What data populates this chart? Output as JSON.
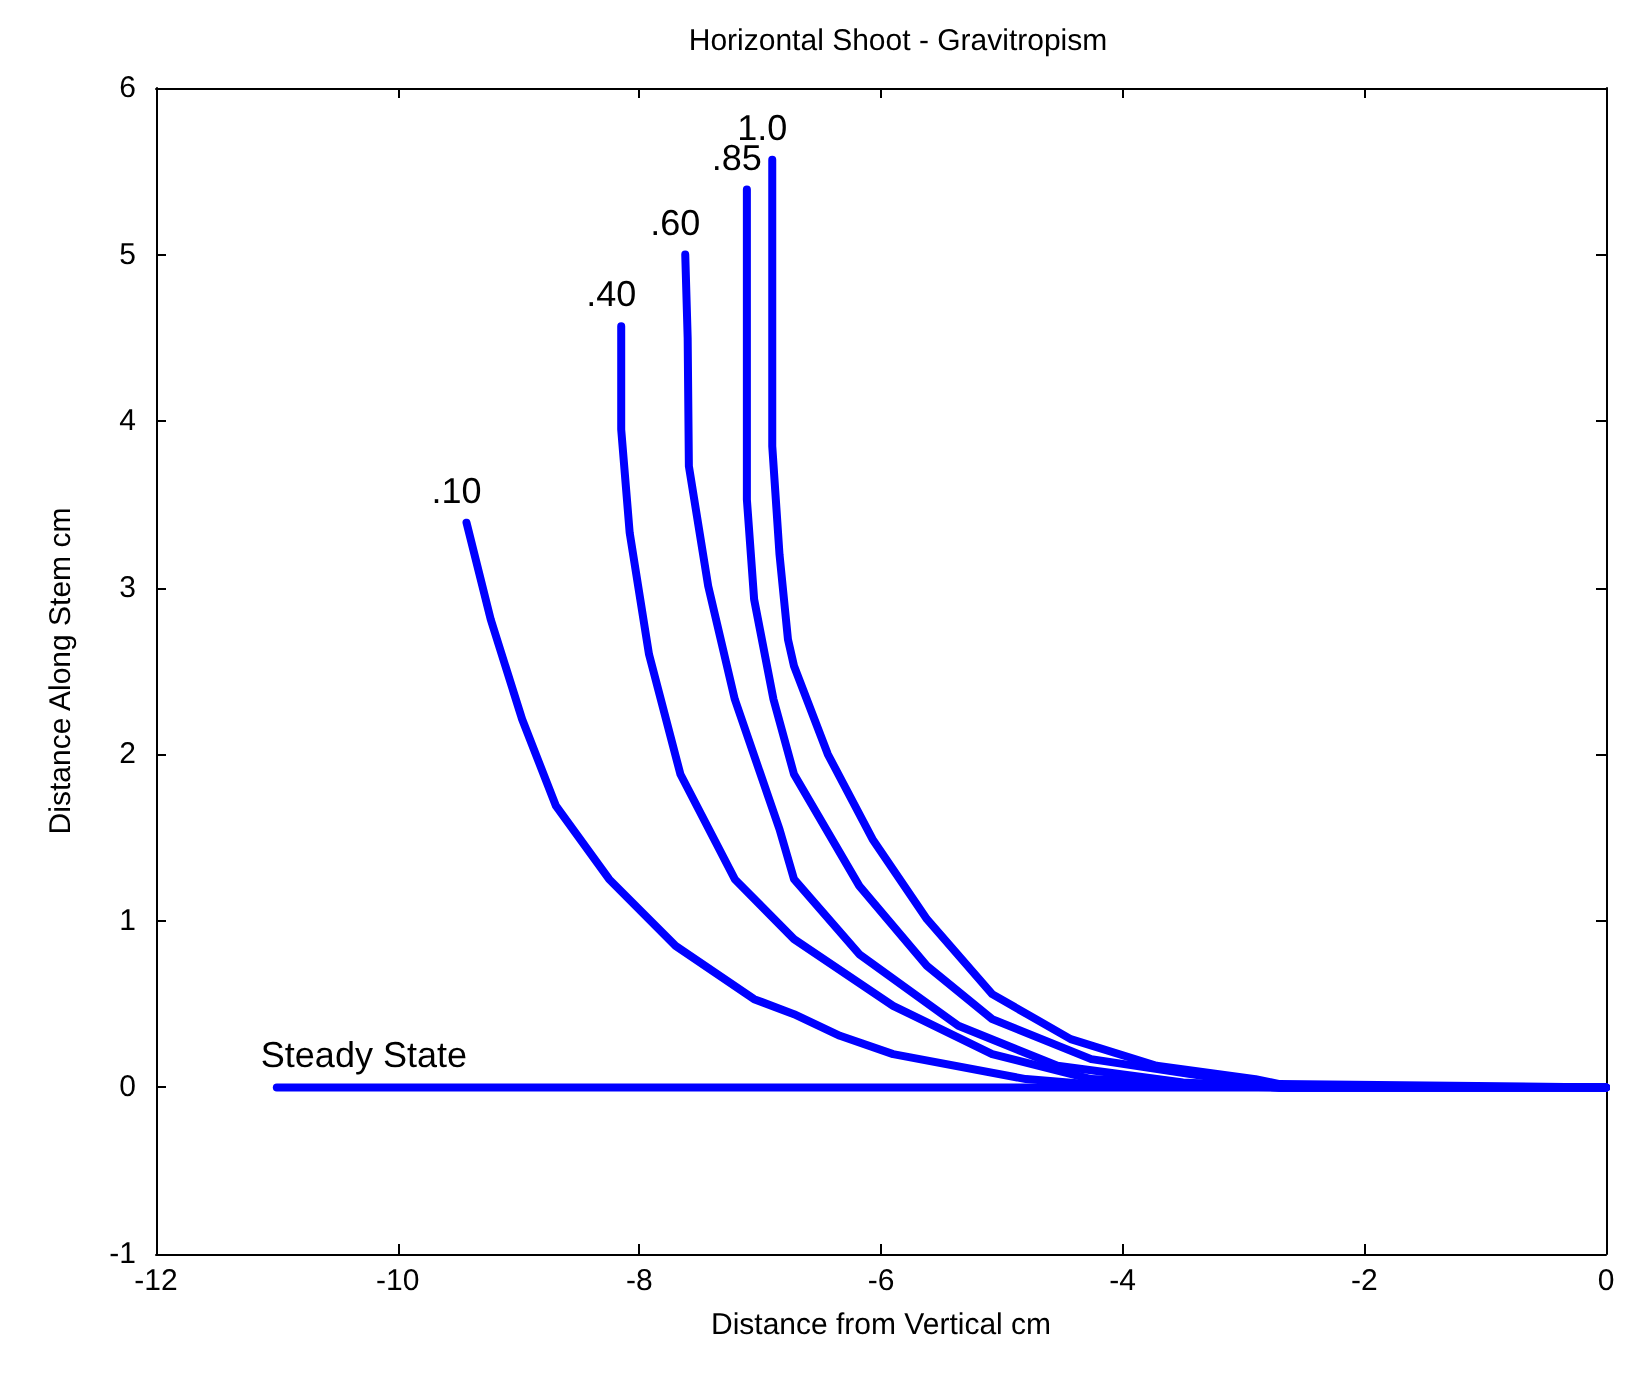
{
  "chart_data": {
    "type": "line",
    "title": "Horizontal Shoot - Gravitropism",
    "xlabel": "Distance from Vertical cm",
    "ylabel": "Distance Along Stem cm",
    "xlim": [
      -12,
      0
    ],
    "ylim": [
      -1,
      6
    ],
    "xticks": [
      -12,
      -10,
      -8,
      -6,
      -4,
      -2,
      0
    ],
    "yticks": [
      -1,
      0,
      1,
      2,
      3,
      4,
      5,
      6
    ],
    "grid": false,
    "marker": "none",
    "line_style": "solid",
    "series": [
      {
        "name": "Steady State",
        "color": "#0000ff",
        "x": [
          -11,
          0
        ],
        "values": [
          0,
          0
        ]
      },
      {
        "name": ".10",
        "color": "#0000ff",
        "x": [
          -9.43,
          -9.23,
          -8.97,
          -8.69,
          -8.25,
          -7.7,
          -7.05,
          -6.72,
          -6.34,
          -5.9,
          -4.8,
          -4.3,
          -2.7,
          0
        ],
        "values": [
          3.39,
          2.81,
          2.21,
          1.69,
          1.25,
          0.85,
          0.53,
          0.44,
          0.31,
          0.2,
          0.05,
          0.02,
          0,
          0
        ]
      },
      {
        "name": ".40",
        "color": "#0000ff",
        "x": [
          -8.15,
          -8.15,
          -8.08,
          -7.92,
          -7.66,
          -7.21,
          -6.72,
          -5.9,
          -5.08,
          -4.26,
          -2.7,
          0
        ],
        "values": [
          4.57,
          3.95,
          3.33,
          2.6,
          1.88,
          1.25,
          0.89,
          0.49,
          0.2,
          0.05,
          0,
          0
        ]
      },
      {
        "name": ".60",
        "color": "#0000ff",
        "x": [
          -7.62,
          -7.6,
          -7.59,
          -7.43,
          -7.21,
          -6.84,
          -6.72,
          -6.18,
          -5.36,
          -4.54,
          -3.5,
          -2.7,
          0
        ],
        "values": [
          5.0,
          4.5,
          3.73,
          3.01,
          2.33,
          1.55,
          1.25,
          0.8,
          0.37,
          0.13,
          0.03,
          0,
          0
        ]
      },
      {
        "name": ".85",
        "color": "#0000ff",
        "x": [
          -7.11,
          -7.11,
          -7.05,
          -6.89,
          -6.72,
          -6.18,
          -5.62,
          -5.08,
          -4.26,
          -3.44,
          -2.7,
          0
        ],
        "values": [
          5.39,
          3.53,
          2.93,
          2.33,
          1.88,
          1.21,
          0.73,
          0.41,
          0.17,
          0.08,
          0,
          0
        ]
      },
      {
        "name": "1.0",
        "color": "#0000ff",
        "x": [
          -6.9,
          -6.9,
          -6.84,
          -6.77,
          -6.72,
          -6.44,
          -6.07,
          -5.62,
          -5.08,
          -4.43,
          -3.72,
          -2.9,
          -2.7,
          0
        ],
        "values": [
          5.57,
          3.85,
          3.2,
          2.69,
          2.53,
          2.0,
          1.49,
          1.01,
          0.56,
          0.29,
          0.13,
          0.05,
          0.02,
          0
        ]
      }
    ]
  }
}
